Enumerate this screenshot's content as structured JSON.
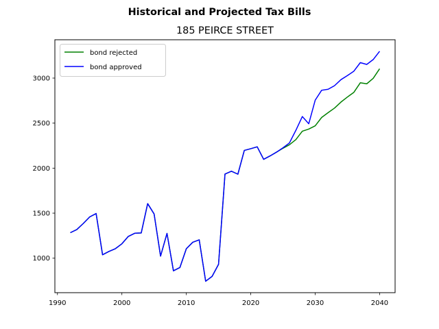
{
  "chart_data": {
    "type": "line",
    "suptitle": "Historical and Projected Tax Bills",
    "title": "185 PEIRCE STREET",
    "xlabel": "",
    "ylabel": "",
    "xlim": [
      1989.6,
      2042.4
    ],
    "ylim": [
      617,
      3426
    ],
    "xticks": [
      1990,
      2000,
      2010,
      2020,
      2030,
      2040
    ],
    "yticks": [
      1000,
      1500,
      2000,
      2500,
      3000
    ],
    "grid": false,
    "legend_position": "upper left",
    "series": [
      {
        "name": "bond rejected",
        "color": "#008000",
        "x": [
          1992,
          1993,
          1994,
          1995,
          1996,
          1997,
          1998,
          1999,
          2000,
          2001,
          2002,
          2003,
          2004,
          2005,
          2006,
          2007,
          2008,
          2009,
          2010,
          2011,
          2012,
          2013,
          2014,
          2015,
          2016,
          2017,
          2018,
          2019,
          2020,
          2021,
          2022,
          2023,
          2024,
          2025,
          2026,
          2027,
          2028,
          2029,
          2030,
          2031,
          2032,
          2033,
          2034,
          2035,
          2036,
          2037,
          2038,
          2039,
          2040
        ],
        "values": [
          1283,
          1318,
          1385,
          1458,
          1496,
          1038,
          1075,
          1106,
          1160,
          1242,
          1277,
          1280,
          1606,
          1491,
          1023,
          1275,
          860,
          896,
          1105,
          1177,
          1204,
          744,
          798,
          932,
          1934,
          1966,
          1933,
          2197,
          2216,
          2237,
          2098,
          2136,
          2178,
          2221,
          2260,
          2317,
          2410,
          2434,
          2470,
          2563,
          2616,
          2667,
          2734,
          2790,
          2842,
          2948,
          2937,
          2997,
          3104
        ]
      },
      {
        "name": "bond approved",
        "color": "#0000ff",
        "x": [
          1992,
          1993,
          1994,
          1995,
          1996,
          1997,
          1998,
          1999,
          2000,
          2001,
          2002,
          2003,
          2004,
          2005,
          2006,
          2007,
          2008,
          2009,
          2010,
          2011,
          2012,
          2013,
          2014,
          2015,
          2016,
          2017,
          2018,
          2019,
          2020,
          2021,
          2022,
          2023,
          2024,
          2025,
          2026,
          2027,
          2028,
          2029,
          2030,
          2031,
          2032,
          2033,
          2034,
          2035,
          2036,
          2037,
          2038,
          2039,
          2040
        ],
        "values": [
          1283,
          1318,
          1385,
          1458,
          1496,
          1038,
          1075,
          1106,
          1160,
          1242,
          1277,
          1280,
          1606,
          1491,
          1023,
          1275,
          860,
          896,
          1105,
          1177,
          1204,
          744,
          798,
          932,
          1934,
          1966,
          1933,
          2197,
          2216,
          2237,
          2098,
          2136,
          2178,
          2226,
          2280,
          2420,
          2573,
          2493,
          2755,
          2865,
          2876,
          2916,
          2983,
          3028,
          3077,
          3172,
          3152,
          3206,
          3298
        ]
      }
    ]
  }
}
